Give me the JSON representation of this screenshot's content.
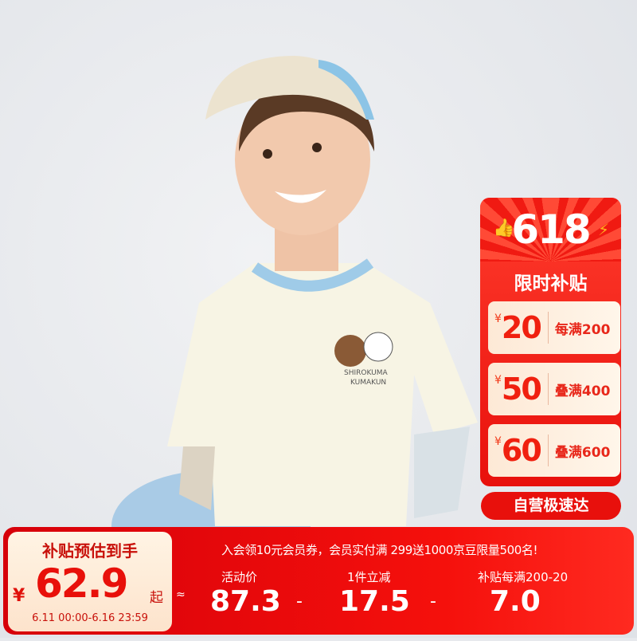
{
  "promo_panel": {
    "event": "618",
    "title": "限时补贴",
    "coupons": [
      {
        "currency": "¥",
        "value": "20",
        "condition": "每满200"
      },
      {
        "currency": "¥",
        "value": "50",
        "condition": "叠满400"
      },
      {
        "currency": "¥",
        "value": "60",
        "condition": "叠满600"
      }
    ],
    "delivery_badge": "自营极速达"
  },
  "shirt_print": {
    "line1": "SHIROKUMA",
    "line2": "KUMAKUN"
  },
  "price_banner": {
    "label": "补贴预估到手",
    "currency": "¥",
    "price": "62.9",
    "suffix": "起",
    "period": "6.11 00:00-6.16 23:59",
    "approx": "≈",
    "notice": "入会领10元会员券，会员实付满 299送1000京豆限量500名!",
    "items": [
      {
        "label": "活动价",
        "value": "87.3"
      },
      {
        "label": "1件立减",
        "value": "17.5"
      },
      {
        "label": "补贴每满200-20",
        "value": "7.0"
      }
    ],
    "operator": "-"
  },
  "colors": {
    "brand_red": "#e8100c",
    "cream": "#fff4e4"
  }
}
